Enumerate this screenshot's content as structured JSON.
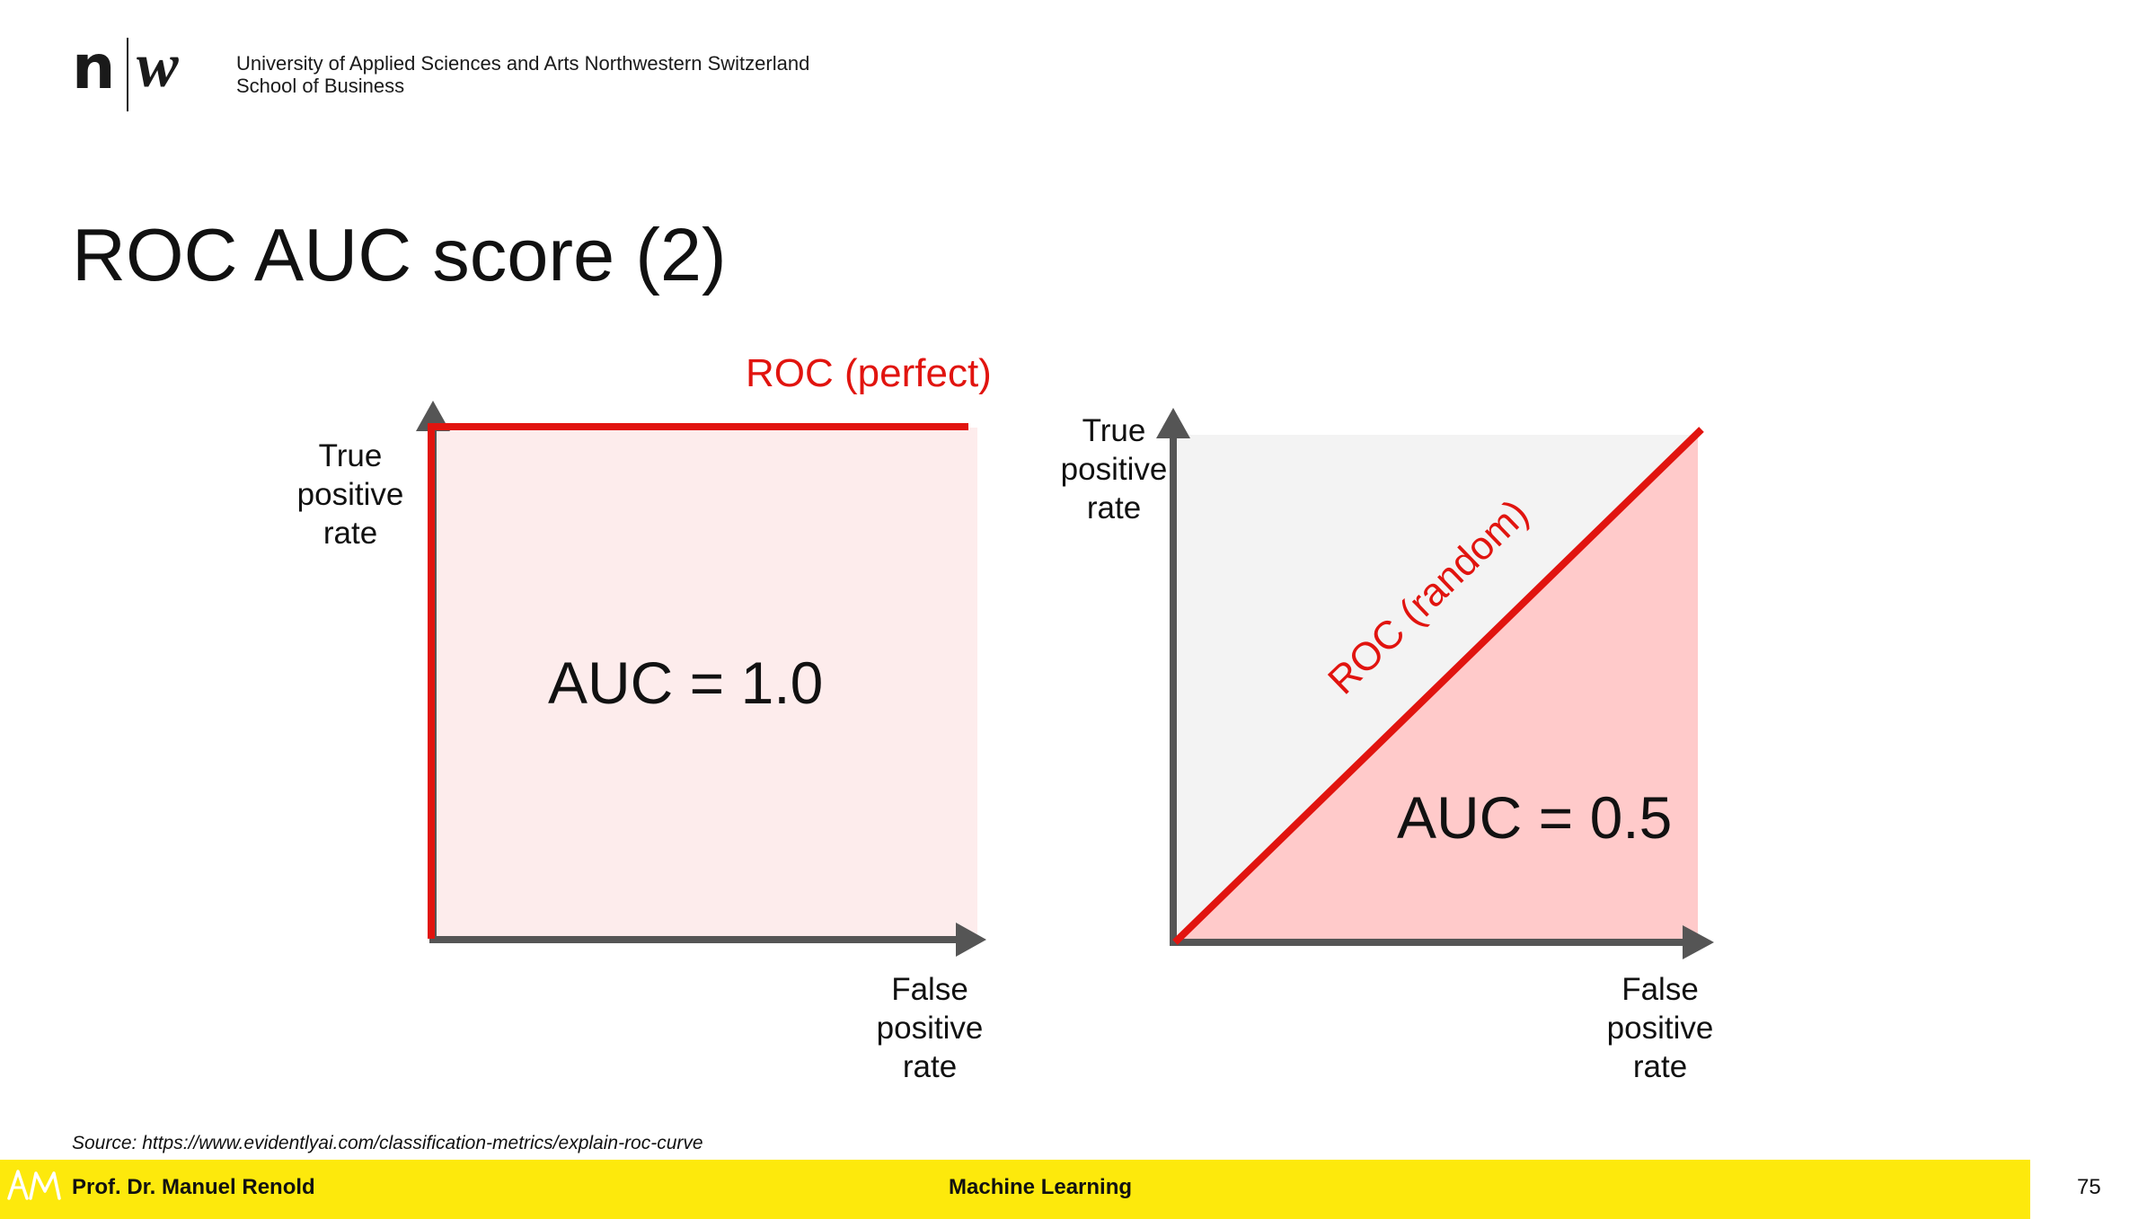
{
  "header": {
    "logo_n": "n",
    "logo_w": "w",
    "institution_line1": "University of Applied Sciences and Arts Northwestern Switzerland",
    "institution_line2": "School of Business"
  },
  "slide": {
    "title": "ROC AUC score (2)"
  },
  "diagram_left": {
    "y_axis_label": [
      "True",
      "positive",
      "rate"
    ],
    "x_axis_label": [
      "False",
      "positive",
      "rate"
    ],
    "curve_label": "ROC (perfect)",
    "auc_text": "AUC = 1.0"
  },
  "diagram_right": {
    "y_axis_label": [
      "True",
      "positive",
      "rate"
    ],
    "x_axis_label": [
      "False",
      "positive",
      "rate"
    ],
    "curve_label": "ROC (random)",
    "auc_text": "AUC = 0.5"
  },
  "colors": {
    "roc_red": "#e1140f",
    "axis_gray": "#555555",
    "fill_perfect": "#fdecec",
    "fill_random": "#ffcaca",
    "fill_upper": "#f3f3f3",
    "footer_yellow": "#fde90c"
  },
  "source": "Source: https://www.evidentlyai.com/classification-metrics/explain-roc-curve",
  "footer": {
    "monogram": "AM",
    "author": "Prof. Dr. Manuel Renold",
    "course": "Machine Learning",
    "page_number": "75"
  }
}
